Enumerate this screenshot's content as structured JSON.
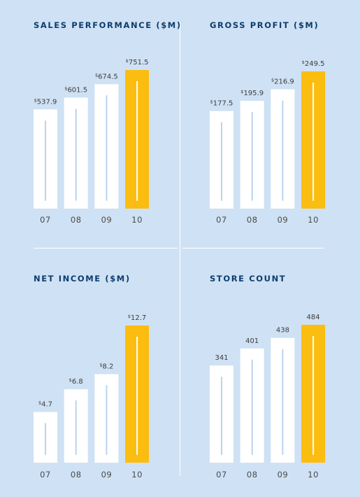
{
  "chart_data": [
    {
      "type": "bar",
      "title": "SALES PERFORMANCE ($M)",
      "currency": "$",
      "categories": [
        "07",
        "08",
        "09",
        "10"
      ],
      "values": [
        537.9,
        601.5,
        674.5,
        751.5
      ],
      "labels": [
        "537.9",
        "601.5",
        "674.5",
        "751.5"
      ]
    },
    {
      "type": "bar",
      "title": "GROSS PROFIT ($M)",
      "currency": "$",
      "categories": [
        "07",
        "08",
        "09",
        "10"
      ],
      "values": [
        177.5,
        195.9,
        216.9,
        249.5
      ],
      "labels": [
        "177.5",
        "195.9",
        "216.9",
        "249.5"
      ]
    },
    {
      "type": "bar",
      "title": "NET INCOME ($M)",
      "currency": "$",
      "categories": [
        "07",
        "08",
        "09",
        "10"
      ],
      "values": [
        4.7,
        6.8,
        8.2,
        12.7
      ],
      "labels": [
        "4.7",
        "6.8",
        "8.2",
        "12.7"
      ]
    },
    {
      "type": "bar",
      "title": "STORE COUNT",
      "currency": "",
      "categories": [
        "07",
        "08",
        "09",
        "10"
      ],
      "values": [
        341,
        401,
        438,
        484
      ],
      "labels": [
        "341",
        "401",
        "438",
        "484"
      ]
    }
  ],
  "colors": {
    "background": "#cfe1f4",
    "bar": "#ffffff",
    "highlight_bar": "#fbbd10",
    "inner_line": "#b9d4ee",
    "title": "#0d3d6e"
  }
}
